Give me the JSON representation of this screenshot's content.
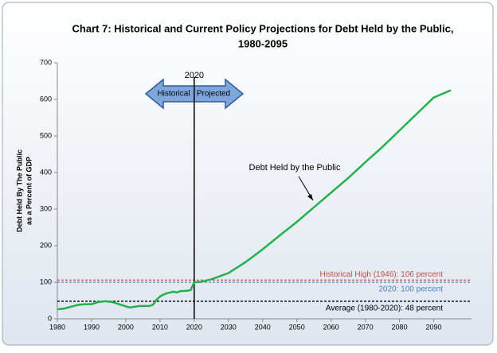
{
  "chart_data": {
    "type": "line",
    "title": [
      "Chart 7:  Historical and Current Policy Projections for Debt Held by the Public,",
      "1980-2095"
    ],
    "y_label": [
      "Debt Held By The Public",
      "as a Percent of GDP"
    ],
    "x": [
      1980,
      1982,
      1984,
      1986,
      1988,
      1990,
      1992,
      1994,
      1996,
      1998,
      2000,
      2001,
      2002,
      2004,
      2006,
      2007,
      2008,
      2009,
      2010,
      2011,
      2012,
      2013,
      2014,
      2015,
      2016,
      2017,
      2018,
      2019,
      2020,
      2022,
      2025,
      2030,
      2035,
      2040,
      2045,
      2050,
      2055,
      2060,
      2065,
      2070,
      2075,
      2080,
      2085,
      2090,
      2095
    ],
    "series": [
      {
        "name": "Debt Held by the Public",
        "color": "#22b14c",
        "values": [
          26,
          28,
          33,
          38,
          40,
          40,
          46,
          48,
          46,
          40,
          34,
          31,
          32,
          35,
          35,
          35,
          39,
          52,
          61,
          66,
          70,
          72,
          74,
          72,
          76,
          76,
          77,
          79,
          100,
          101,
          108,
          125,
          155,
          190,
          228,
          265,
          305,
          345,
          385,
          428,
          470,
          515,
          560,
          605,
          625
        ]
      }
    ],
    "xlim": [
      1980,
      2095
    ],
    "ylim": [
      0,
      700
    ],
    "xticks": [
      1980,
      1990,
      2000,
      2010,
      2020,
      2030,
      2040,
      2050,
      2060,
      2070,
      2080,
      2090
    ],
    "yticks": [
      0,
      100,
      200,
      300,
      400,
      500,
      600,
      700
    ],
    "reference_lines": [
      {
        "value": 106,
        "label": "Historical High (1946): 106 percent",
        "color": "#c0504d"
      },
      {
        "value": 100,
        "label": "2020: 100 percent",
        "color": "#4f81bd"
      },
      {
        "value": 48,
        "label": "Average (1980-2020): 48 percent",
        "color": "#000000"
      }
    ],
    "divider": {
      "x": 2020,
      "label": "2020",
      "left": "Historical",
      "right": "Projected"
    }
  }
}
